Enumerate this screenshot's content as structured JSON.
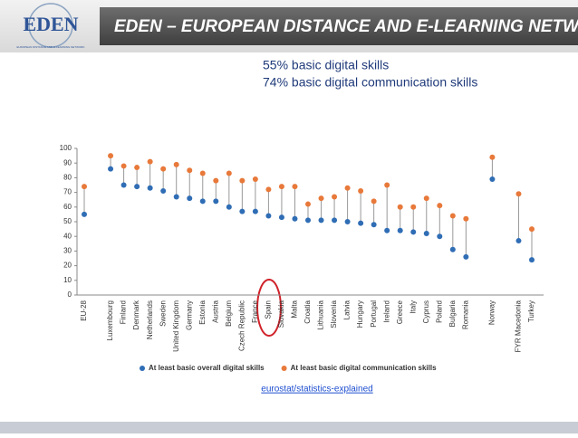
{
  "slide": {
    "header": "EDEN – EUROPEAN DISTANCE AND E-LEARNING NETWORK",
    "logo": "EDEN",
    "logo_subtitle": "EUROPEAN DISTANCE AND E-LEARNING NETWORK",
    "notes": [
      "55% basic digital skills",
      "74% basic digital communication skills"
    ],
    "source": "eurostat/statistics-explained"
  },
  "chart_data": {
    "type": "dot",
    "categories": [
      "EU-28",
      null,
      "Luxembourg",
      "Finland",
      "Denmark",
      "Netherlands",
      "Sweden",
      "United Kingdom",
      "Germany",
      "Estonia",
      "Austria",
      "Belgium",
      "Czech Republic",
      "France",
      "Spain",
      "Slovakia",
      "Malta",
      "Croatia",
      "Lithuania",
      "Slovenia",
      "Latvia",
      "Hungary",
      "Portugal",
      "Ireland",
      "Greece",
      "Italy",
      "Cyprus",
      "Poland",
      "Bulgaria",
      "Romania",
      null,
      "Norway",
      null,
      "FYR Macedonia",
      "Turkey"
    ],
    "series": [
      {
        "name": "At least basic overall digital skills",
        "color": "#2f6db5",
        "values": [
          55,
          null,
          86,
          75,
          74,
          73,
          71,
          67,
          66,
          64,
          64,
          60,
          57,
          57,
          54,
          53,
          52,
          51,
          51,
          51,
          50,
          49,
          48,
          44,
          44,
          43,
          42,
          40,
          31,
          26,
          null,
          79,
          null,
          37,
          24
        ]
      },
      {
        "name": "At least basic digital communication skills",
        "color": "#e8793a",
        "values": [
          74,
          null,
          95,
          88,
          87,
          91,
          86,
          89,
          85,
          83,
          78,
          83,
          78,
          79,
          72,
          74,
          74,
          62,
          66,
          67,
          73,
          71,
          64,
          75,
          60,
          60,
          66,
          61,
          54,
          52,
          null,
          94,
          null,
          69,
          45
        ]
      }
    ],
    "ylim": [
      0,
      100
    ],
    "yticks": [
      0,
      10,
      20,
      30,
      40,
      50,
      60,
      70,
      80,
      90,
      100
    ],
    "grid": false,
    "legend": "bottom"
  }
}
